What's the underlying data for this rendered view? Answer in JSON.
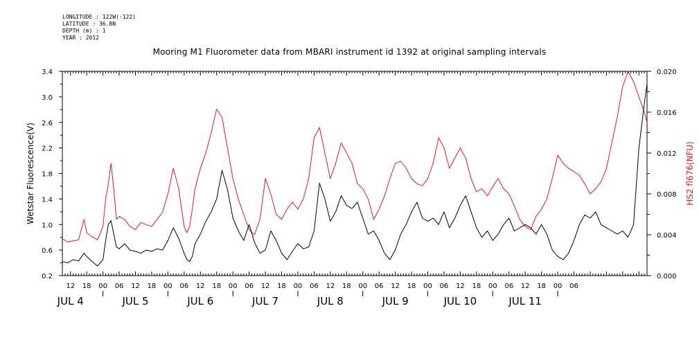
{
  "header": {
    "longitude": "LONGITUDE : 122W(-122)",
    "latitude": "LATITUDE : 36.8N",
    "depth": "DEPTH (m) : 1",
    "year": "YEAR : 2012"
  },
  "chart_data": {
    "type": "line",
    "title": "Mooring M1 Fluorometer data from MBARI instrument id 1392 at original sampling intervals",
    "ylabel_left": "Wetstar Fluorescence(V)",
    "ylabel_right": "HS2 fl676(NFU)",
    "ylim_left": [
      0.2,
      3.4
    ],
    "ylim_right": [
      0.0,
      0.02
    ],
    "yticks_left": [
      "0.2",
      "0.6",
      "1.0",
      "1.4",
      "1.8",
      "2.2",
      "2.6",
      "3.0",
      "3.4"
    ],
    "yticks_right": [
      "0.000",
      "0.004",
      "0.008",
      "0.012",
      "0.016",
      "0.020"
    ],
    "x_unit": "hours since JUL 4 00:00",
    "xlim": [
      9,
      225
    ],
    "hour_ticks": [
      "12",
      "18",
      "00",
      "06",
      "12",
      "18",
      "00",
      "06",
      "12",
      "18",
      "00",
      "06",
      "12",
      "18",
      "00",
      "06",
      "12",
      "18",
      "00",
      "06",
      "12",
      "18",
      "00",
      "06",
      "12",
      "18",
      "00",
      "06",
      "12",
      "18",
      "00",
      "06"
    ],
    "day_labels": [
      "JUL 4",
      "JUL 5",
      "JUL 6",
      "JUL 7",
      "JUL 8",
      "JUL 9",
      "JUL 10",
      "JUL 11"
    ],
    "series": [
      {
        "axis": "left",
        "color": "#000000",
        "x": [
          9,
          11,
          13,
          15,
          17,
          18,
          20,
          22,
          24,
          25,
          26,
          27,
          28,
          29,
          30,
          32,
          34,
          36,
          38,
          40,
          42,
          44,
          46,
          48,
          50,
          52,
          54,
          55,
          56,
          57,
          58,
          60,
          62,
          64,
          66,
          68,
          70,
          72,
          74,
          76,
          78,
          80,
          82,
          84,
          86,
          88,
          90,
          92,
          94,
          96,
          98,
          100,
          102,
          104,
          106,
          108,
          110,
          112,
          114,
          116,
          118,
          120,
          122,
          124,
          126,
          128,
          130,
          132,
          134,
          136,
          138,
          140,
          142,
          144,
          146,
          148,
          150,
          152,
          154,
          156,
          158,
          160,
          162,
          164,
          166,
          168,
          170,
          172,
          174,
          176,
          178,
          180,
          182,
          184,
          186,
          188,
          190,
          192,
          194,
          196,
          198,
          200,
          202,
          204,
          206,
          208,
          210,
          212,
          214,
          216,
          218,
          220,
          222,
          224,
          225
        ],
        "values": [
          0.42,
          0.4,
          0.45,
          0.43,
          0.55,
          0.5,
          0.42,
          0.35,
          0.45,
          0.75,
          1.0,
          1.06,
          0.85,
          0.65,
          0.62,
          0.7,
          0.6,
          0.58,
          0.55,
          0.6,
          0.58,
          0.62,
          0.6,
          0.75,
          0.95,
          0.78,
          0.55,
          0.45,
          0.42,
          0.5,
          0.7,
          0.85,
          1.05,
          1.2,
          1.4,
          1.85,
          1.55,
          1.1,
          0.9,
          0.75,
          1.0,
          0.72,
          0.55,
          0.6,
          0.9,
          0.75,
          0.55,
          0.45,
          0.58,
          0.7,
          0.62,
          0.65,
          0.9,
          1.65,
          1.4,
          1.05,
          1.2,
          1.45,
          1.3,
          1.25,
          1.35,
          1.1,
          0.85,
          0.9,
          0.75,
          0.55,
          0.45,
          0.6,
          0.85,
          1.0,
          1.2,
          1.35,
          1.1,
          1.05,
          1.1,
          1.0,
          1.2,
          0.95,
          1.1,
          1.3,
          1.45,
          1.2,
          0.95,
          0.8,
          0.9,
          0.75,
          0.85,
          1.0,
          1.1,
          0.9,
          0.95,
          1.0,
          0.95,
          0.85,
          1.0,
          0.85,
          0.6,
          0.5,
          0.45,
          0.55,
          0.75,
          1.0,
          1.15,
          1.1,
          1.2,
          1.0,
          0.95,
          0.9,
          0.85,
          0.9,
          0.8,
          1.0,
          2.2,
          2.9,
          3.2
        ]
      },
      {
        "axis": "right",
        "color": "#e41a1c",
        "x": [
          9,
          11,
          13,
          15,
          17,
          18,
          20,
          22,
          24,
          25,
          26,
          27,
          28,
          29,
          30,
          32,
          34,
          36,
          38,
          40,
          42,
          44,
          46,
          48,
          50,
          52,
          54,
          55,
          56,
          57,
          58,
          60,
          62,
          64,
          66,
          68,
          70,
          72,
          74,
          76,
          78,
          80,
          82,
          84,
          86,
          88,
          90,
          92,
          94,
          96,
          98,
          100,
          102,
          104,
          106,
          108,
          110,
          112,
          114,
          116,
          118,
          120,
          122,
          124,
          126,
          128,
          130,
          132,
          134,
          136,
          138,
          140,
          142,
          144,
          146,
          148,
          150,
          152,
          154,
          156,
          158,
          160,
          162,
          164,
          166,
          168,
          170,
          172,
          174,
          176,
          178,
          180,
          182,
          184,
          186,
          188,
          190,
          192,
          194,
          196,
          198,
          200,
          202,
          204,
          206,
          208,
          210,
          212,
          214,
          216,
          218,
          220,
          222,
          224,
          225
        ],
        "values": [
          0.0036,
          0.0033,
          0.0034,
          0.0035,
          0.0055,
          0.0042,
          0.0038,
          0.0035,
          0.0048,
          0.0075,
          0.009,
          0.011,
          0.0085,
          0.0055,
          0.0058,
          0.0055,
          0.0048,
          0.0045,
          0.0052,
          0.005,
          0.0048,
          0.0055,
          0.0062,
          0.008,
          0.0105,
          0.0085,
          0.0048,
          0.0042,
          0.0048,
          0.0065,
          0.0085,
          0.0105,
          0.012,
          0.014,
          0.0163,
          0.0155,
          0.0125,
          0.0095,
          0.0075,
          0.006,
          0.0045,
          0.004,
          0.0055,
          0.0095,
          0.008,
          0.006,
          0.0055,
          0.0065,
          0.0072,
          0.0065,
          0.0075,
          0.0095,
          0.0135,
          0.0145,
          0.012,
          0.0095,
          0.011,
          0.013,
          0.012,
          0.011,
          0.009,
          0.0085,
          0.0075,
          0.0055,
          0.0065,
          0.0078,
          0.0095,
          0.011,
          0.0112,
          0.0105,
          0.0095,
          0.009,
          0.0088,
          0.0095,
          0.011,
          0.0135,
          0.0125,
          0.0105,
          0.0115,
          0.0125,
          0.0115,
          0.0095,
          0.0082,
          0.0085,
          0.0078,
          0.0087,
          0.0095,
          0.0085,
          0.008,
          0.0068,
          0.0055,
          0.0048,
          0.0045,
          0.0058,
          0.0065,
          0.0075,
          0.0095,
          0.0118,
          0.011,
          0.0105,
          0.0102,
          0.0098,
          0.009,
          0.008,
          0.0085,
          0.0092,
          0.0105,
          0.013,
          0.0155,
          0.0185,
          0.02,
          0.019,
          0.0175,
          0.016,
          0.015
        ]
      }
    ]
  }
}
